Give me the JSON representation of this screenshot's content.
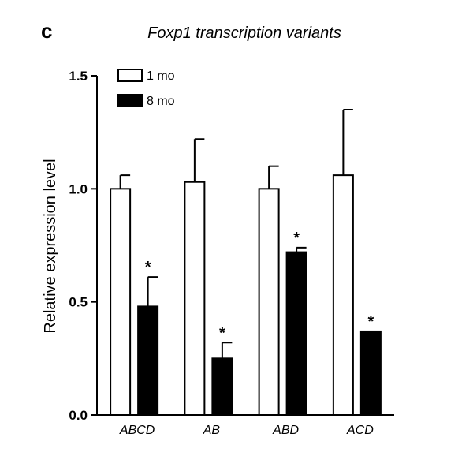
{
  "panel_label": "c",
  "chart_data": {
    "type": "bar",
    "title": "Foxp1 transcription variants",
    "xlabel": "",
    "ylabel": "Relative expression level",
    "ylim": [
      0,
      1.5
    ],
    "yticks": [
      "0.0",
      "0.5",
      "1.0",
      "1.5"
    ],
    "categories": [
      "ABCD",
      "AB",
      "ABD",
      "ACD"
    ],
    "series": [
      {
        "name": "1 mo",
        "color": "#ffffff",
        "values": [
          1.0,
          1.03,
          1.0,
          1.06
        ],
        "errors": [
          0.06,
          0.19,
          0.1,
          0.29
        ],
        "significance": [
          "",
          "",
          "",
          ""
        ]
      },
      {
        "name": "8 mo",
        "color": "#000000",
        "values": [
          0.48,
          0.25,
          0.72,
          0.37
        ],
        "errors": [
          0.13,
          0.07,
          0.02,
          0.0
        ],
        "significance": [
          "*",
          "*",
          "*",
          "*"
        ]
      }
    ],
    "grid": false,
    "legend_position": "top-left"
  }
}
